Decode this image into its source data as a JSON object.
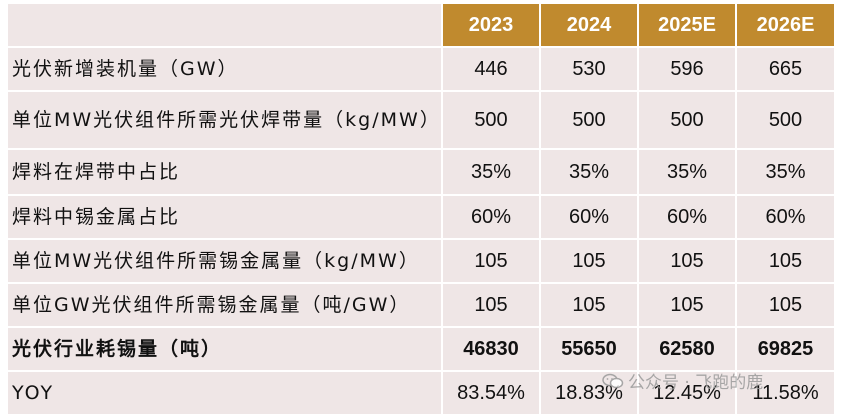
{
  "headers": [
    "",
    "2023",
    "2024",
    "2025E",
    "2026E"
  ],
  "rows": [
    {
      "label": "光伏新增装机量（GW）",
      "values": [
        "446",
        "530",
        "596",
        "665"
      ]
    },
    {
      "label": "单位MW光伏组件所需光伏焊带量（kg/MW）",
      "values": [
        "500",
        "500",
        "500",
        "500"
      ]
    },
    {
      "label": "焊料在焊带中占比",
      "values": [
        "35%",
        "35%",
        "35%",
        "35%"
      ]
    },
    {
      "label": "焊料中锡金属占比",
      "values": [
        "60%",
        "60%",
        "60%",
        "60%"
      ]
    },
    {
      "label": "单位MW光伏组件所需锡金属量（kg/MW）",
      "values": [
        "105",
        "105",
        "105",
        "105"
      ]
    },
    {
      "label": "单位GW光伏组件所需锡金属量（吨/GW）",
      "values": [
        "105",
        "105",
        "105",
        "105"
      ]
    },
    {
      "label": "光伏行业耗锡量（吨）",
      "values": [
        "46830",
        "55650",
        "62580",
        "69825"
      ]
    },
    {
      "label": "YOY",
      "values": [
        "83.54%",
        "18.83%",
        "12.45%",
        "11.58%"
      ]
    }
  ],
  "watermark": {
    "text": "公众号 · 飞跑的鹿",
    "icon": "wechat-icon"
  },
  "colors": {
    "header_bg": "#c08a2e",
    "cell_bg": "#efe6e6"
  }
}
